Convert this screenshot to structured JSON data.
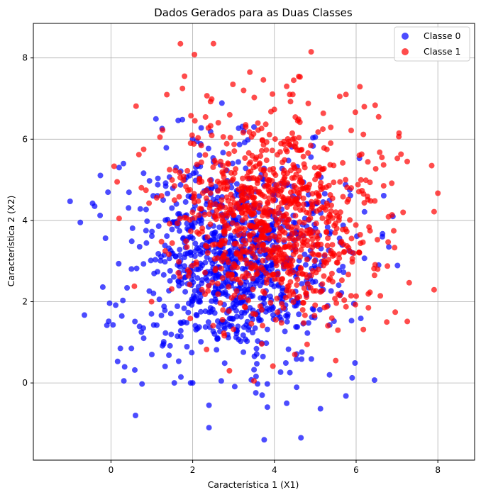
{
  "chart_data": {
    "type": "scatter",
    "title": "Dados Gerados para as Duas Classes",
    "xlabel": "Característica 1 (X1)",
    "ylabel": "Característica 2 (X2)",
    "xlim": [
      -1.9,
      8.9
    ],
    "ylim": [
      -1.9,
      8.85
    ],
    "xticks": [
      0,
      2,
      4,
      6,
      8
    ],
    "yticks": [
      0,
      2,
      4,
      6,
      8
    ],
    "grid": true,
    "legend_position": "top-right",
    "distribution": "normal",
    "series": [
      {
        "name": "Classe 0",
        "color": "#0000ff",
        "opacity": 0.7,
        "count": 1000,
        "mean": [
          3,
          3
        ],
        "std": [
          1.25,
          1.25
        ],
        "points": [
          [
            -1.0,
            4.47
          ],
          [
            -0.75,
            3.95
          ],
          [
            -0.45,
            4.42
          ],
          [
            -0.4,
            4.35
          ],
          [
            -0.65,
            1.67
          ],
          [
            -0.2,
            2.36
          ],
          [
            -0.1,
            1.42
          ],
          [
            0.05,
            1.43
          ],
          [
            0.6,
            -0.8
          ],
          [
            1.55,
            0.0
          ],
          [
            1.95,
            0.0
          ],
          [
            2.0,
            0.0
          ],
          [
            2.4,
            -0.55
          ],
          [
            2.4,
            -1.1
          ],
          [
            2.7,
            0.05
          ],
          [
            3.7,
            -0.3
          ],
          [
            3.75,
            -1.4
          ],
          [
            4.3,
            -0.5
          ],
          [
            4.65,
            -1.35
          ],
          [
            5.75,
            -0.32
          ],
          [
            6.45,
            0.07
          ],
          [
            1.1,
            6.5
          ],
          [
            2.0,
            6.0
          ],
          [
            2.1,
            5.95
          ],
          [
            3.25,
            6.2
          ],
          [
            3.5,
            6.3
          ],
          [
            5.0,
            6.05
          ],
          [
            5.35,
            0.2
          ],
          [
            6.55,
            2.9
          ],
          [
            6.9,
            4.1
          ],
          [
            6.8,
            3.35
          ],
          [
            0.8,
            1.1
          ],
          [
            0.5,
            0.85
          ],
          [
            1.0,
            0.7
          ],
          [
            0.2,
            5.3
          ]
        ]
      },
      {
        "name": "Classe 1",
        "color": "#ff0000",
        "opacity": 0.7,
        "count": 1000,
        "mean": [
          4,
          4
        ],
        "std": [
          1.25,
          1.25
        ],
        "points": [
          [
            1.7,
            8.35
          ],
          [
            1.8,
            7.55
          ],
          [
            1.75,
            7.25
          ],
          [
            3.4,
            7.65
          ],
          [
            4.9,
            8.15
          ],
          [
            4.3,
            7.3
          ],
          [
            4.45,
            7.1
          ],
          [
            5.75,
            7.1
          ],
          [
            5.6,
            7.05
          ],
          [
            6.2,
            6.8
          ],
          [
            6.55,
            6.55
          ],
          [
            7.05,
            6.15
          ],
          [
            7.25,
            5.45
          ],
          [
            7.85,
            5.35
          ],
          [
            8.0,
            4.67
          ],
          [
            7.15,
            4.2
          ],
          [
            6.75,
            1.5
          ],
          [
            6.3,
            1.85
          ],
          [
            0.15,
            4.95
          ],
          [
            0.2,
            4.05
          ],
          [
            0.8,
            5.75
          ],
          [
            1.2,
            6.05
          ],
          [
            1.95,
            5.9
          ],
          [
            2.9,
            0.3
          ],
          [
            3.5,
            0.05
          ],
          [
            4.8,
            0.95
          ],
          [
            5.5,
            0.55
          ],
          [
            4.5,
            0.7
          ],
          [
            6.45,
            2.65
          ],
          [
            6.1,
            3.65
          ]
        ]
      }
    ]
  }
}
